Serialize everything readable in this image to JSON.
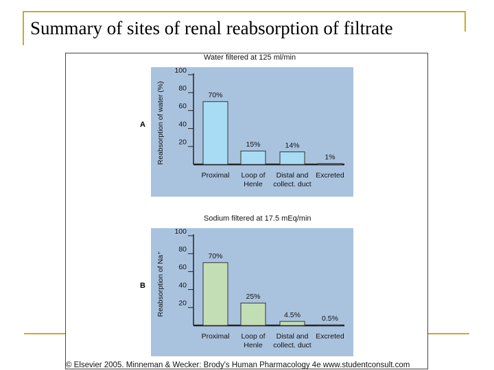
{
  "slide_title": "Summary of sites of renal reabsorption of filtrate",
  "source": "© Elsevier 2005. Minneman & Wecker: Brody's Human Pharmacology 4e www.studentconsult.com",
  "chart_data": [
    {
      "type": "bar",
      "panel_label": "A",
      "title": "Water filtered at 125 ml/min",
      "y_label": "Reabsorption of water (%)",
      "categories": [
        "Proximal",
        "Loop of\nHenle",
        "Distal and\ncollect. duct",
        "Excreted"
      ],
      "values": [
        70,
        15,
        14,
        1
      ],
      "value_labels": [
        "70%",
        "15%",
        "14%",
        "1%"
      ],
      "color": "#a8dcf5",
      "ylim": [
        0,
        100
      ],
      "yticks": [
        20,
        40,
        60,
        80,
        100
      ]
    },
    {
      "type": "bar",
      "panel_label": "B",
      "title": "Sodium filtered at 17.5 mEq/min",
      "y_label": "Reabsorption of Na⁺",
      "categories": [
        "Proximal",
        "Loop of\nHenle",
        "Distal and\ncollect. duct",
        "Excreted"
      ],
      "values": [
        70,
        25,
        4.5,
        0.5
      ],
      "value_labels": [
        "70%",
        "25%",
        "4.5%",
        "0.5%"
      ],
      "color": "#c3deb5",
      "ylim": [
        0,
        100
      ],
      "yticks": [
        20,
        40,
        60,
        80,
        100
      ]
    }
  ]
}
